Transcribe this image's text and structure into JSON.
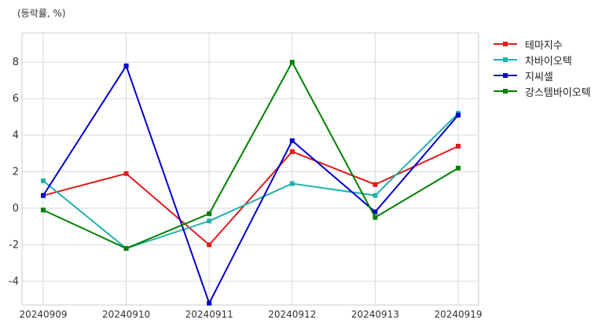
{
  "chart_data": {
    "type": "line",
    "unit_label": "(등락률, %)",
    "categories": [
      "20240909",
      "20240910",
      "20240911",
      "20240912",
      "20240913",
      "20240919"
    ],
    "ylim": [
      -5.3,
      9.6
    ],
    "yticks": [
      -4,
      -2,
      0,
      2,
      4,
      6,
      8
    ],
    "grid": true,
    "legend_position": "right",
    "series": [
      {
        "name": "테마지수",
        "color": "#e31a1c",
        "values": [
          0.7,
          1.9,
          -2.0,
          3.1,
          1.3,
          3.4
        ]
      },
      {
        "name": "차바이오텍",
        "color": "#20b2aa",
        "values": [
          1.5,
          -2.2,
          -0.7,
          1.35,
          0.7,
          5.2
        ]
      },
      {
        "name": "지씨셀",
        "color": "#0000cd",
        "values": [
          0.7,
          7.8,
          -5.2,
          3.7,
          -0.2,
          5.1
        ]
      },
      {
        "name": "강스템바이오텍",
        "color": "#008000",
        "values": [
          -0.1,
          -2.2,
          -0.3,
          8.0,
          -0.5,
          2.2
        ]
      }
    ]
  }
}
